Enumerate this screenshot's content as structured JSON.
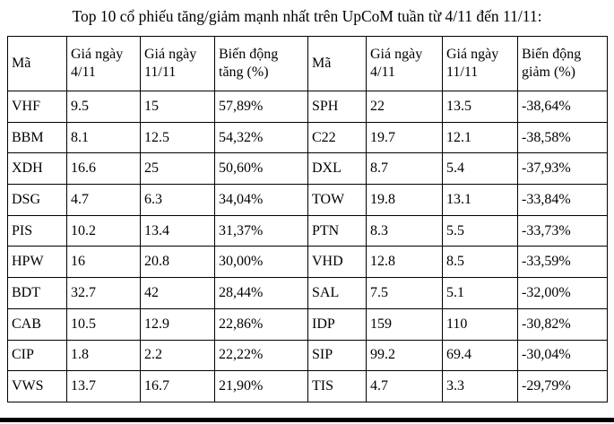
{
  "title": "Top 10 cổ phiếu tăng/giảm mạnh nhất trên UpCoM tuần từ 4/11 đến 11/11:",
  "table": {
    "headers": [
      "Mã",
      "Giá ngày 4/11",
      "Giá ngày 11/11",
      "Biến động tăng (%)",
      "Mã",
      "Giá ngày 4/11",
      "Giá ngày 11/11",
      "Biến động giảm (%)"
    ],
    "rows": [
      [
        "VHF",
        "9.5",
        "15",
        "57,89%",
        "SPH",
        "22",
        "13.5",
        "-38,64%"
      ],
      [
        "BBM",
        "8.1",
        "12.5",
        "54,32%",
        "C22",
        "19.7",
        "12.1",
        "-38,58%"
      ],
      [
        "XDH",
        "16.6",
        "25",
        "50,60%",
        "DXL",
        "8.7",
        "5.4",
        "-37,93%"
      ],
      [
        "DSG",
        "4.7",
        "6.3",
        "34,04%",
        "TOW",
        "19.8",
        "13.1",
        "-33,84%"
      ],
      [
        "PIS",
        "10.2",
        "13.4",
        "31,37%",
        "PTN",
        "8.3",
        "5.5",
        "-33,73%"
      ],
      [
        "HPW",
        "16",
        "20.8",
        "30,00%",
        "VHD",
        "12.8",
        "8.5",
        "-33,59%"
      ],
      [
        "BDT",
        "32.7",
        "42",
        "28,44%",
        "SAL",
        "7.5",
        "5.1",
        "-32,00%"
      ],
      [
        "CAB",
        "10.5",
        "12.9",
        "22,86%",
        "IDP",
        "159",
        "110",
        "-30,82%"
      ],
      [
        "CIP",
        "1.8",
        "2.2",
        "22,22%",
        "SIP",
        "99.2",
        "69.4",
        "-30,04%"
      ],
      [
        "VWS",
        "13.7",
        "16.7",
        "21,90%",
        "TIS",
        "4.7",
        "3.3",
        "-29,79%"
      ]
    ]
  },
  "colors": {
    "text": "#000000",
    "border": "#000000",
    "background": "#ffffff",
    "bottom_rule": "#000000"
  }
}
